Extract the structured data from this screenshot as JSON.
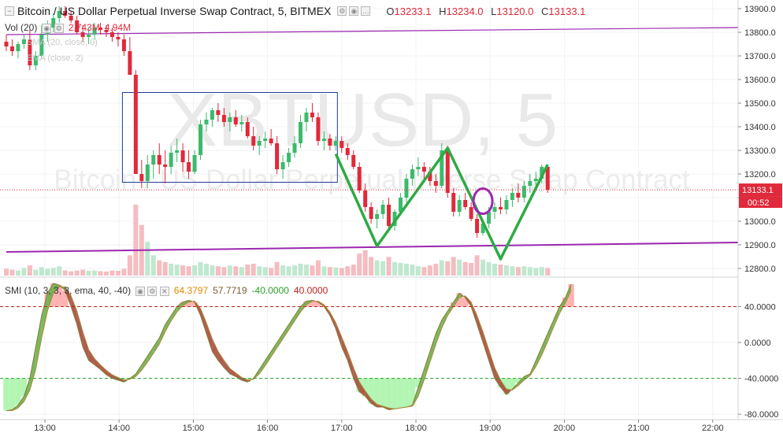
{
  "header": {
    "symbol_title": "Bitcoin / US Dollar Perpetual Inverse Swap Contract, 5, BITMEX",
    "ohlc": [
      {
        "k": "O",
        "v": "13233.1"
      },
      {
        "k": "H",
        "v": "13234.0"
      },
      {
        "k": "L",
        "v": "13120.0"
      },
      {
        "k": "C",
        "v": "13133.1"
      }
    ]
  },
  "volume": {
    "label": "Vol (20)",
    "value1": "2.743M",
    "value2": "4.94M"
  },
  "hidden_indicators": {
    "ma1": "SMA (20, close, 0)",
    "ma2": "EMA (close, 2)"
  },
  "indicator": {
    "label": "SMI (10, 3, 3, 3, ema, 40, -40)",
    "values": [
      "64.3797",
      "57.7719",
      "-40.0000",
      "40.0000"
    ]
  },
  "watermark": {
    "big": "XBTUSD, 5",
    "small": "Bitcoin / US Dollar Perpetual Inverse Swap Contract"
  },
  "price_badge": {
    "price": "13133.1",
    "countdown": "00:52"
  },
  "colors": {
    "up": "#3cba6c",
    "down": "#e0293a",
    "purple": "#9c27b0",
    "green_pattern": "#2eaa44",
    "smi_line": "#8a7a3a",
    "smi_fill_up": "#6ab04c",
    "smi_fill_down": "#a64b3c",
    "zone_over": "#ffb3b3",
    "zone_under": "#b3f5b3"
  },
  "chart_data": [
    {
      "type": "candlestick",
      "title": "Bitcoin / US Dollar Perpetual Inverse Swap Contract, 5, BITMEX",
      "y_ticks": [
        12800,
        12900,
        13000,
        13100,
        13200,
        13300,
        13400,
        13500,
        13600,
        13700,
        13800,
        13900
      ],
      "y_labels": [
        "12800.0",
        "12900.0",
        "13000.0",
        "13100.0",
        "13200.0",
        "13300.0",
        "13400.0",
        "13500.0",
        "13600.0",
        "13700.0",
        "13800.0",
        "13900.0"
      ],
      "ylim": [
        12770,
        13930
      ],
      "x_labels": [
        "13:00",
        "14:00",
        "15:00",
        "16:00",
        "17:00",
        "18:00",
        "19:00",
        "20:00",
        "21:00",
        "22:00"
      ],
      "x_start": "12:37",
      "last_price": 13133.1,
      "candles": [
        [
          13760,
          13790,
          13720,
          13740
        ],
        [
          13740,
          13770,
          13700,
          13720
        ],
        [
          13720,
          13760,
          13690,
          13750
        ],
        [
          13750,
          13790,
          13730,
          13770
        ],
        [
          13770,
          13810,
          13640,
          13660
        ],
        [
          13660,
          13720,
          13640,
          13700
        ],
        [
          13700,
          13830,
          13690,
          13790
        ],
        [
          13790,
          13850,
          13760,
          13820
        ],
        [
          13820,
          13880,
          13800,
          13860
        ],
        [
          13860,
          13910,
          13840,
          13890
        ],
        [
          13890,
          13910,
          13860,
          13870
        ],
        [
          13870,
          13890,
          13840,
          13850
        ],
        [
          13850,
          13870,
          13790,
          13800
        ],
        [
          13800,
          13830,
          13760,
          13780
        ],
        [
          13780,
          13820,
          13750,
          13790
        ],
        [
          13790,
          13840,
          13770,
          13820
        ],
        [
          13820,
          13840,
          13790,
          13810
        ],
        [
          13810,
          13830,
          13780,
          13800
        ],
        [
          13800,
          13820,
          13760,
          13780
        ],
        [
          13780,
          13800,
          13740,
          13770
        ],
        [
          13770,
          13790,
          13700,
          13720
        ],
        [
          13720,
          13780,
          13620,
          13620
        ],
        [
          13620,
          13640,
          13200,
          13200
        ],
        [
          13200,
          13260,
          13140,
          13170
        ],
        [
          13170,
          13280,
          13140,
          13240
        ],
        [
          13240,
          13300,
          13180,
          13280
        ],
        [
          13280,
          13330,
          13200,
          13240
        ],
        [
          13240,
          13300,
          13160,
          13230
        ],
        [
          13230,
          13320,
          13200,
          13290
        ],
        [
          13290,
          13350,
          13250,
          13300
        ],
        [
          13300,
          13330,
          13210,
          13250
        ],
        [
          13250,
          13300,
          13180,
          13210
        ],
        [
          13210,
          13300,
          13200,
          13280
        ],
        [
          13280,
          13430,
          13260,
          13410
        ],
        [
          13410,
          13460,
          13380,
          13430
        ],
        [
          13430,
          13480,
          13400,
          13470
        ],
        [
          13470,
          13500,
          13420,
          13450
        ],
        [
          13450,
          13480,
          13400,
          13420
        ],
        [
          13420,
          13460,
          13380,
          13440
        ],
        [
          13440,
          13470,
          13400,
          13410
        ],
        [
          13410,
          13450,
          13380,
          13420
        ],
        [
          13420,
          13440,
          13350,
          13360
        ],
        [
          13360,
          13400,
          13300,
          13320
        ],
        [
          13320,
          13360,
          13280,
          13340
        ],
        [
          13340,
          13380,
          13310,
          13350
        ],
        [
          13350,
          13390,
          13320,
          13330
        ],
        [
          13330,
          13360,
          13200,
          13220
        ],
        [
          13220,
          13280,
          13180,
          13250
        ],
        [
          13250,
          13310,
          13230,
          13290
        ],
        [
          13290,
          13360,
          13270,
          13330
        ],
        [
          13330,
          13450,
          13310,
          13420
        ],
        [
          13420,
          13480,
          13380,
          13460
        ],
        [
          13460,
          13500,
          13420,
          13440
        ],
        [
          13440,
          13460,
          13320,
          13340
        ],
        [
          13340,
          13380,
          13300,
          13350
        ],
        [
          13350,
          13370,
          13300,
          13320
        ],
        [
          13320,
          13360,
          13300,
          13340
        ],
        [
          13340,
          13360,
          13290,
          13310
        ],
        [
          13310,
          13330,
          13260,
          13280
        ],
        [
          13280,
          13300,
          13220,
          13230
        ],
        [
          13230,
          13250,
          13120,
          13130
        ],
        [
          13130,
          13160,
          13040,
          13060
        ],
        [
          13060,
          13080,
          12990,
          13010
        ],
        [
          13010,
          13050,
          12970,
          13030
        ],
        [
          13030,
          13090,
          13010,
          13070
        ],
        [
          13070,
          13100,
          12960,
          12980
        ],
        [
          12980,
          13050,
          12960,
          13040
        ],
        [
          13040,
          13120,
          13030,
          13100
        ],
        [
          13100,
          13200,
          13080,
          13180
        ],
        [
          13180,
          13240,
          13150,
          13220
        ],
        [
          13220,
          13270,
          13190,
          13230
        ],
        [
          13230,
          13250,
          13170,
          13210
        ],
        [
          13210,
          13230,
          13150,
          13170
        ],
        [
          13170,
          13200,
          13120,
          13150
        ],
        [
          13150,
          13330,
          13140,
          13300
        ],
        [
          13300,
          13320,
          13100,
          13120
        ],
        [
          13120,
          13140,
          13020,
          13040
        ],
        [
          13040,
          13110,
          13020,
          13090
        ],
        [
          13090,
          13120,
          13050,
          13060
        ],
        [
          13060,
          13080,
          13000,
          13010
        ],
        [
          13010,
          13030,
          12930,
          12950
        ],
        [
          12950,
          13010,
          12940,
          12990
        ],
        [
          12990,
          13060,
          12970,
          13040
        ],
        [
          13040,
          13080,
          13010,
          13060
        ],
        [
          13060,
          13100,
          13030,
          13050
        ],
        [
          13050,
          13110,
          13030,
          13090
        ],
        [
          13090,
          13140,
          13060,
          13120
        ],
        [
          13120,
          13160,
          13080,
          13100
        ],
        [
          13100,
          13170,
          13080,
          13150
        ],
        [
          13150,
          13200,
          13120,
          13170
        ],
        [
          13170,
          13210,
          13140,
          13180
        ],
        [
          13180,
          13240,
          13160,
          13230
        ],
        [
          13230,
          13240,
          13120,
          13133.1
        ]
      ],
      "volumes": [
        40,
        35,
        30,
        45,
        60,
        35,
        50,
        40,
        45,
        55,
        30,
        25,
        30,
        35,
        28,
        30,
        26,
        24,
        30,
        28,
        40,
        120,
        420,
        300,
        200,
        120,
        90,
        80,
        70,
        65,
        60,
        55,
        60,
        80,
        70,
        60,
        55,
        50,
        60,
        55,
        50,
        65,
        70,
        55,
        50,
        45,
        80,
        60,
        55,
        60,
        70,
        65,
        60,
        90,
        55,
        50,
        48,
        45,
        55,
        65,
        130,
        150,
        110,
        90,
        85,
        110,
        80,
        75,
        70,
        65,
        55,
        50,
        60,
        70,
        90,
        85,
        110,
        95,
        80,
        75,
        120,
        95,
        80,
        70,
        65,
        60,
        55,
        50,
        55,
        50,
        45,
        50,
        45
      ],
      "annotations": {
        "rectangle": {
          "t1": 20,
          "t2": 56,
          "p1": 13545,
          "p2": 13165
        },
        "resistance_line": [
          [
            0,
            13790
          ],
          [
            128,
            13820
          ]
        ],
        "support_line": [
          [
            0,
            12870
          ],
          [
            128,
            12910
          ]
        ],
        "price_pattern": [
          [
            56,
            13285
          ],
          [
            63,
            12895
          ],
          [
            75,
            13310
          ],
          [
            84,
            12840
          ],
          [
            92,
            13240
          ]
        ],
        "circle": {
          "t": 81,
          "p": 13085
        }
      }
    },
    {
      "type": "line",
      "title": "SMI (10, 3, 3, 3, ema, 40, -40)",
      "series": [
        {
          "name": "SMI",
          "values": [
            -76,
            -75,
            -70,
            -60,
            -40,
            -5,
            30,
            55,
            66,
            64,
            58,
            40,
            20,
            -5,
            -20,
            -25,
            -30,
            -36,
            -40,
            -42,
            -44,
            -40,
            -35,
            -25,
            -15,
            -5,
            5,
            20,
            30,
            40,
            45,
            47,
            45,
            30,
            10,
            -10,
            -20,
            -28,
            -35,
            -38,
            -42,
            -44,
            -40,
            -30,
            -20,
            -10,
            0,
            10,
            20,
            30,
            40,
            46,
            47,
            45,
            40,
            30,
            15,
            -5,
            -20,
            -40,
            -55,
            -60,
            -68,
            -72,
            -72,
            -75,
            -74,
            -73,
            -72,
            -70,
            -50,
            -30,
            -10,
            10,
            25,
            35,
            45,
            55,
            50,
            40,
            20,
            0,
            -20,
            -40,
            -50,
            -58,
            -52,
            -45,
            -38,
            -35,
            -20,
            -5,
            10,
            25,
            40,
            50,
            65
          ]
        },
        {
          "name": "Signal",
          "values": [
            -76,
            -76,
            -73,
            -66,
            -53,
            -30,
            5,
            35,
            55,
            62,
            62,
            52,
            35,
            12,
            -8,
            -18,
            -25,
            -31,
            -36,
            -39,
            -42,
            -41,
            -38,
            -31,
            -22,
            -12,
            -2,
            12,
            24,
            34,
            41,
            45,
            46,
            38,
            22,
            4,
            -10,
            -20,
            -29,
            -34,
            -39,
            -42,
            -41,
            -35,
            -26,
            -16,
            -6,
            4,
            14,
            24,
            34,
            42,
            46,
            46,
            42,
            34,
            22,
            6,
            -10,
            -28,
            -44,
            -54,
            -63,
            -69,
            -71,
            -73,
            -74,
            -73,
            -72,
            -71,
            -60,
            -42,
            -22,
            -2,
            16,
            30,
            40,
            50,
            52,
            45,
            30,
            12,
            -8,
            -28,
            -42,
            -52,
            -53,
            -48,
            -42,
            -37,
            -27,
            -14,
            1,
            17,
            32,
            44,
            58
          ]
        }
      ],
      "y_labels": [
        "-80.0000",
        "-40.0000",
        "0.0000",
        "40.0000"
      ],
      "y_ticks": [
        -80,
        -40,
        0,
        40
      ],
      "ylim": [
        -86,
        72
      ],
      "levels": [
        40,
        -40
      ]
    }
  ]
}
